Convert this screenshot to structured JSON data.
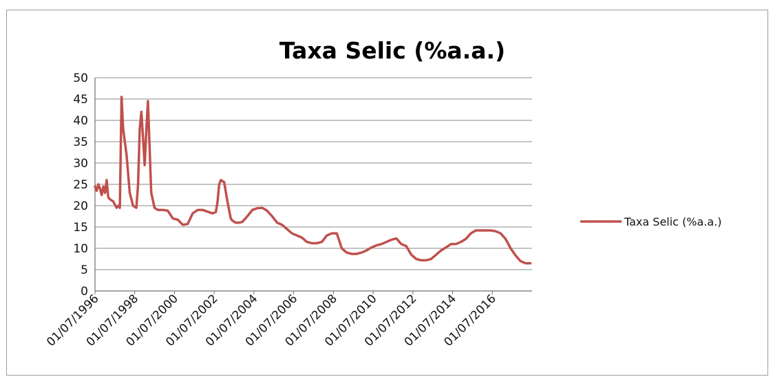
{
  "chart_data": {
    "type": "line",
    "title": "Taxa Selic (%a.a.)",
    "xlabel": "",
    "ylabel": "",
    "ylim": [
      0,
      50
    ],
    "yticks": [
      0,
      5,
      10,
      15,
      20,
      25,
      30,
      35,
      40,
      45,
      50
    ],
    "xlim": [
      "1996-07-01",
      "2018-07-01"
    ],
    "xtick_labels": [
      "01/07/1996",
      "01/07/1998",
      "01/07/2000",
      "01/07/2002",
      "01/07/2004",
      "01/07/2006",
      "01/07/2008",
      "01/07/2010",
      "01/07/2012",
      "01/07/2014",
      "01/07/2016"
    ],
    "xtick_dates": [
      "1996-07-01",
      "1998-07-01",
      "2000-07-01",
      "2002-07-01",
      "2004-07-01",
      "2006-07-01",
      "2008-07-01",
      "2010-07-01",
      "2012-07-01",
      "2014-07-01",
      "2016-07-01"
    ],
    "grid": true,
    "legend_position": "right",
    "series": [
      {
        "name": "Taxa Selic (%a.a.)",
        "color": "#c0504d",
        "x": [
          "1996-07-01",
          "1996-08-01",
          "1996-09-01",
          "1996-10-01",
          "1996-11-01",
          "1996-12-01",
          "1997-01-01",
          "1997-02-01",
          "1997-03-01",
          "1997-04-01",
          "1997-06-01",
          "1997-08-01",
          "1997-09-01",
          "1997-10-01",
          "1997-11-01",
          "1997-12-01",
          "1998-02-01",
          "1998-04-01",
          "1998-06-01",
          "1998-08-01",
          "1998-09-01",
          "1998-10-01",
          "1998-11-01",
          "1999-01-01",
          "1999-02-01",
          "1999-03-01",
          "1999-05-01",
          "1999-07-01",
          "1999-09-01",
          "1999-12-01",
          "2000-03-01",
          "2000-06-01",
          "2000-09-01",
          "2000-12-01",
          "2001-03-01",
          "2001-06-01",
          "2001-09-01",
          "2001-12-01",
          "2002-03-01",
          "2002-06-01",
          "2002-08-01",
          "2002-09-01",
          "2002-10-01",
          "2002-11-01",
          "2003-01-01",
          "2003-03-01",
          "2003-05-01",
          "2003-06-01",
          "2003-08-01",
          "2003-10-01",
          "2003-12-01",
          "2004-03-01",
          "2004-06-01",
          "2004-09-01",
          "2004-12-01",
          "2005-03-01",
          "2005-06-01",
          "2005-09-01",
          "2005-12-01",
          "2006-03-01",
          "2006-06-01",
          "2006-09-01",
          "2006-12-01",
          "2007-03-01",
          "2007-06-01",
          "2007-09-01",
          "2007-12-01",
          "2008-03-01",
          "2008-06-01",
          "2008-09-01",
          "2008-12-01",
          "2009-03-01",
          "2009-06-01",
          "2009-09-01",
          "2009-12-01",
          "2010-03-01",
          "2010-06-01",
          "2010-09-01",
          "2010-12-01",
          "2011-03-01",
          "2011-06-01",
          "2011-09-01",
          "2011-12-01",
          "2012-03-01",
          "2012-06-01",
          "2012-09-01",
          "2012-12-01",
          "2013-03-01",
          "2013-06-01",
          "2013-09-01",
          "2013-12-01",
          "2014-03-01",
          "2014-06-01",
          "2014-09-01",
          "2014-12-01",
          "2015-03-01",
          "2015-06-01",
          "2015-09-01",
          "2015-12-01",
          "2016-03-01",
          "2016-06-01",
          "2016-09-01",
          "2016-12-01",
          "2017-03-01",
          "2017-06-01",
          "2017-09-01",
          "2017-12-01",
          "2018-03-01",
          "2018-06-01"
        ],
        "values": [
          24.5,
          23.5,
          25,
          24,
          22.5,
          24.5,
          23,
          26,
          22,
          21.5,
          21,
          19.5,
          20,
          19.5,
          45.5,
          38,
          32,
          23,
          20,
          19.5,
          25,
          38,
          42,
          29.5,
          38,
          44.5,
          23,
          19.5,
          19,
          19,
          18.8,
          17,
          16.7,
          15.5,
          15.7,
          18.2,
          19,
          19,
          18.6,
          18.2,
          18.5,
          21,
          25,
          26,
          25.5,
          21,
          17,
          16.5,
          16,
          16,
          16.2,
          17.5,
          19,
          19.4,
          19.5,
          18.8,
          17.5,
          16,
          15.5,
          14.5,
          13.5,
          13,
          12.5,
          11.5,
          11.2,
          11.2,
          11.5,
          13,
          13.5,
          13.5,
          10,
          9,
          8.7,
          8.7,
          9,
          9.5,
          10.2,
          10.7,
          11,
          11.5,
          12,
          12.3,
          11,
          10.5,
          8.5,
          7.5,
          7.2,
          7.2,
          7.5,
          8.5,
          9.5,
          10.2,
          11,
          11,
          11.5,
          12.2,
          13.5,
          14.2,
          14.2,
          14.2,
          14.2,
          14,
          13.5,
          12.2,
          10,
          8.3,
          7,
          6.5,
          6.5
        ]
      }
    ]
  }
}
